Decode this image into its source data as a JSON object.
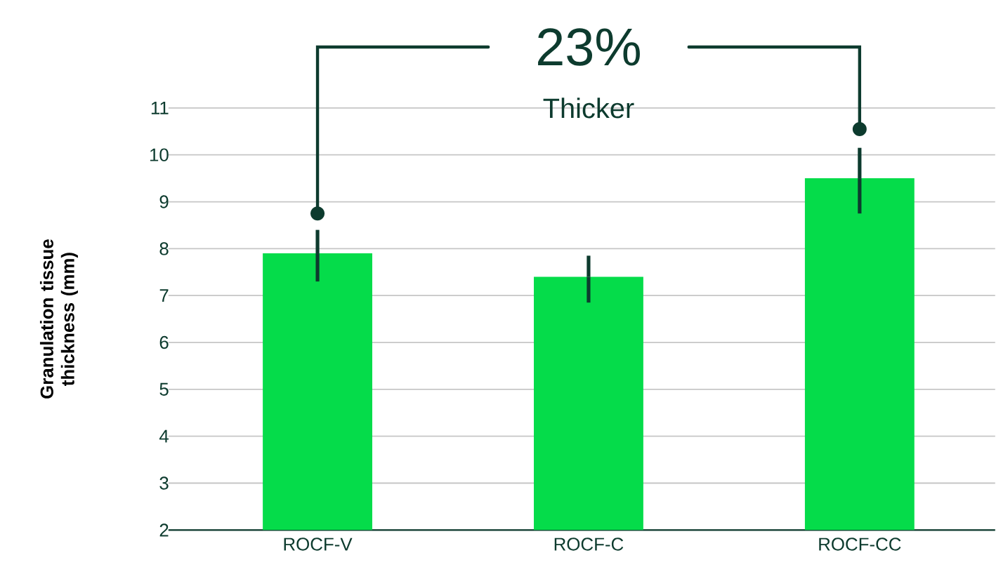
{
  "chart_data": {
    "type": "bar",
    "ylabel": "Granulation tissue thickness (mm)",
    "categories": [
      "ROCF-V",
      "ROCF-C",
      "ROCF-CC"
    ],
    "values": [
      7.9,
      7.4,
      9.5
    ],
    "errors": [
      [
        7.3,
        8.4
      ],
      [
        6.85,
        7.85
      ],
      [
        8.75,
        10.15
      ]
    ],
    "color": "#05dc4a",
    "ylim": [
      2,
      11
    ],
    "yticks": [
      2,
      3,
      4,
      5,
      6,
      7,
      8,
      9,
      10,
      11
    ],
    "grid": "y",
    "annotations": [
      "23%",
      "Thicker"
    ]
  }
}
